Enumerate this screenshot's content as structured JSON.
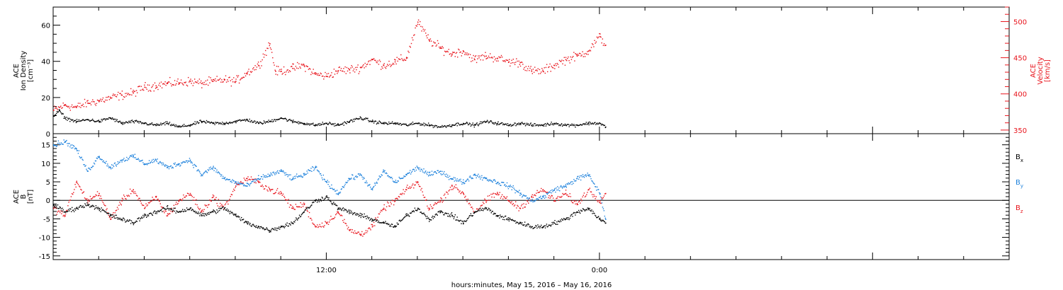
{
  "chart_data": [
    {
      "type": "scatter",
      "panel": "top",
      "x_unit": "hours since 00:00 May 15, 2016",
      "xlim": [
        0,
        42
      ],
      "ylabel_lines": [
        "ACE",
        "Ion Density",
        "[cm⁻³]"
      ],
      "ylim": [
        0,
        70
      ],
      "yticks": [
        "0",
        "20",
        "40",
        "60"
      ],
      "y2label_lines": [
        "ACE",
        "Velocity",
        "[km/s]"
      ],
      "y2lim": [
        345,
        520
      ],
      "y2ticks": [
        "350",
        "400",
        "450",
        "500"
      ],
      "series": [
        {
          "axis": "left",
          "color": "#000000",
          "x": [
            0,
            0.25,
            0.5,
            1,
            1.5,
            2,
            2.5,
            3,
            3.5,
            4,
            4.5,
            5,
            5.5,
            6,
            6.5,
            7,
            7.5,
            8,
            8.5,
            9,
            9.5,
            10,
            10.5,
            11,
            11.5,
            12,
            12.5,
            13,
            13.5,
            14,
            14.5,
            15,
            15.5,
            16,
            16.5,
            17,
            17.5,
            18,
            18.5,
            19,
            19.5,
            20,
            20.5,
            21,
            21.5,
            22,
            22.5,
            23,
            23.5,
            24,
            24.25
          ],
          "values": [
            10,
            13,
            9,
            7,
            8,
            7,
            9,
            6,
            7,
            6,
            5,
            6,
            4,
            5,
            7,
            6,
            6,
            7,
            8,
            6,
            7,
            9,
            7,
            6,
            5,
            6,
            5,
            7,
            9,
            7,
            6,
            6,
            5,
            6,
            5,
            4,
            5,
            6,
            5,
            7,
            6,
            5,
            6,
            5,
            5,
            6,
            5,
            5,
            6,
            6,
            4
          ]
        },
        {
          "axis": "right",
          "color": "#e8141c",
          "x": [
            0,
            0.5,
            1,
            1.5,
            2,
            2.5,
            3,
            3.5,
            4,
            4.5,
            5,
            5.5,
            6,
            6.5,
            7,
            7.5,
            8,
            8.5,
            9,
            9.5,
            9.75,
            10,
            10.5,
            11,
            11.5,
            12,
            12.5,
            13,
            13.5,
            14,
            14.5,
            15,
            15.5,
            16,
            16.5,
            17,
            17.5,
            18,
            18.5,
            19,
            19.5,
            20,
            20.5,
            21,
            21.5,
            22,
            22.5,
            23,
            23.5,
            24,
            24.25
          ],
          "values": [
            378,
            385,
            382,
            388,
            391,
            395,
            399,
            402,
            410,
            412,
            415,
            416,
            418,
            415,
            418,
            420,
            418,
            430,
            440,
            470,
            432,
            432,
            436,
            440,
            428,
            425,
            433,
            434,
            437,
            448,
            440,
            445,
            450,
            500,
            475,
            464,
            456,
            460,
            448,
            453,
            450,
            445,
            444,
            432,
            432,
            440,
            448,
            453,
            460,
            480,
            468
          ]
        }
      ]
    },
    {
      "type": "scatter",
      "panel": "bottom",
      "x_unit": "hours since 00:00 May 15, 2016",
      "xlim": [
        0,
        42
      ],
      "ylabel_lines": [
        "ACE",
        "B",
        "[nT]"
      ],
      "ylim": [
        -16,
        18
      ],
      "yticks": [
        "-15",
        "-10",
        "-5",
        "0",
        "5",
        "10",
        "15"
      ],
      "xtick_labels": [
        {
          "hour": 12,
          "label": "12:00"
        },
        {
          "hour": 24,
          "label": "0:00"
        }
      ],
      "xlabel": "hours:minutes, May 15, 2016 – May 16, 2016",
      "series": [
        {
          "name": "B_x",
          "legend_main": "B",
          "legend_sub": "x",
          "color": "#000000",
          "x": [
            0,
            0.5,
            1,
            1.5,
            2,
            2.5,
            3,
            3.5,
            4,
            4.5,
            5,
            5.5,
            6,
            6.5,
            7,
            7.5,
            8,
            8.5,
            9,
            9.5,
            10,
            10.5,
            11,
            11.5,
            12,
            12.5,
            13,
            13.5,
            14,
            14.5,
            15,
            15.5,
            16,
            16.5,
            17,
            17.5,
            18,
            18.5,
            19,
            19.5,
            20,
            20.5,
            21,
            21.5,
            22,
            22.5,
            23,
            23.5,
            24,
            24.25
          ],
          "values": [
            -1,
            -3,
            -2,
            -1,
            -2,
            -4,
            -5,
            -6,
            -4,
            -3,
            -2,
            -3,
            -2,
            -4,
            -3,
            -2,
            -4,
            -6,
            -7,
            -8,
            -7,
            -6,
            -3,
            0,
            1,
            -2,
            -3,
            -4,
            -5,
            -6,
            -7,
            -4,
            -2,
            -5,
            -3,
            -4,
            -6,
            -3,
            -2,
            -4,
            -5,
            -6,
            -7,
            -7,
            -6,
            -5,
            -3,
            -2,
            -5,
            -6
          ]
        },
        {
          "name": "B_y",
          "legend_main": "B",
          "legend_sub": "y",
          "color": "#1e82dc",
          "x": [
            0,
            0.5,
            1,
            1.5,
            2,
            2.5,
            3,
            3.5,
            4,
            4.5,
            5,
            5.5,
            6,
            6.5,
            7,
            7.5,
            8,
            8.5,
            9,
            9.5,
            10,
            10.5,
            11,
            11.5,
            12,
            12.5,
            13,
            13.5,
            14,
            14.5,
            15,
            15.5,
            16,
            16.5,
            17,
            17.5,
            18,
            18.5,
            19,
            19.5,
            20,
            20.5,
            21,
            21.5,
            22,
            22.5,
            23,
            23.5,
            24,
            24.25
          ],
          "values": [
            15,
            16,
            14,
            8,
            12,
            9,
            11,
            12,
            10,
            11,
            9,
            10,
            11,
            7,
            9,
            6,
            5,
            4,
            6,
            7,
            8,
            6,
            7,
            9,
            5,
            2,
            6,
            7,
            3,
            8,
            5,
            7,
            9,
            7,
            8,
            6,
            5,
            7,
            6,
            5,
            4,
            2,
            0,
            1,
            3,
            4,
            6,
            7,
            2,
            -5
          ]
        },
        {
          "name": "B_z",
          "legend_main": "B",
          "legend_sub": "z",
          "color": "#e8141c",
          "x": [
            0,
            0.5,
            1,
            1.5,
            2,
            2.5,
            3,
            3.5,
            4,
            4.5,
            5,
            5.5,
            6,
            6.5,
            7,
            7.5,
            8,
            8.5,
            9,
            9.5,
            10,
            10.5,
            11,
            11.5,
            12,
            12.5,
            13,
            13.5,
            14,
            14.5,
            15,
            15.5,
            16,
            16.5,
            17,
            17.5,
            18,
            18.5,
            19,
            19.5,
            20,
            20.5,
            21,
            21.5,
            22,
            22.5,
            23,
            23.5,
            24,
            24.25
          ],
          "values": [
            -2,
            -4,
            5,
            0,
            2,
            -5,
            0,
            3,
            -2,
            1,
            -4,
            0,
            2,
            -3,
            1,
            -2,
            4,
            6,
            5,
            3,
            2,
            -2,
            -1,
            -7,
            -6,
            -3,
            -8,
            -9,
            -7,
            -2,
            0,
            3,
            5,
            -2,
            0,
            4,
            2,
            -3,
            0,
            2,
            0,
            -2,
            1,
            3,
            0,
            2,
            -1,
            3,
            0,
            2
          ]
        }
      ]
    }
  ]
}
